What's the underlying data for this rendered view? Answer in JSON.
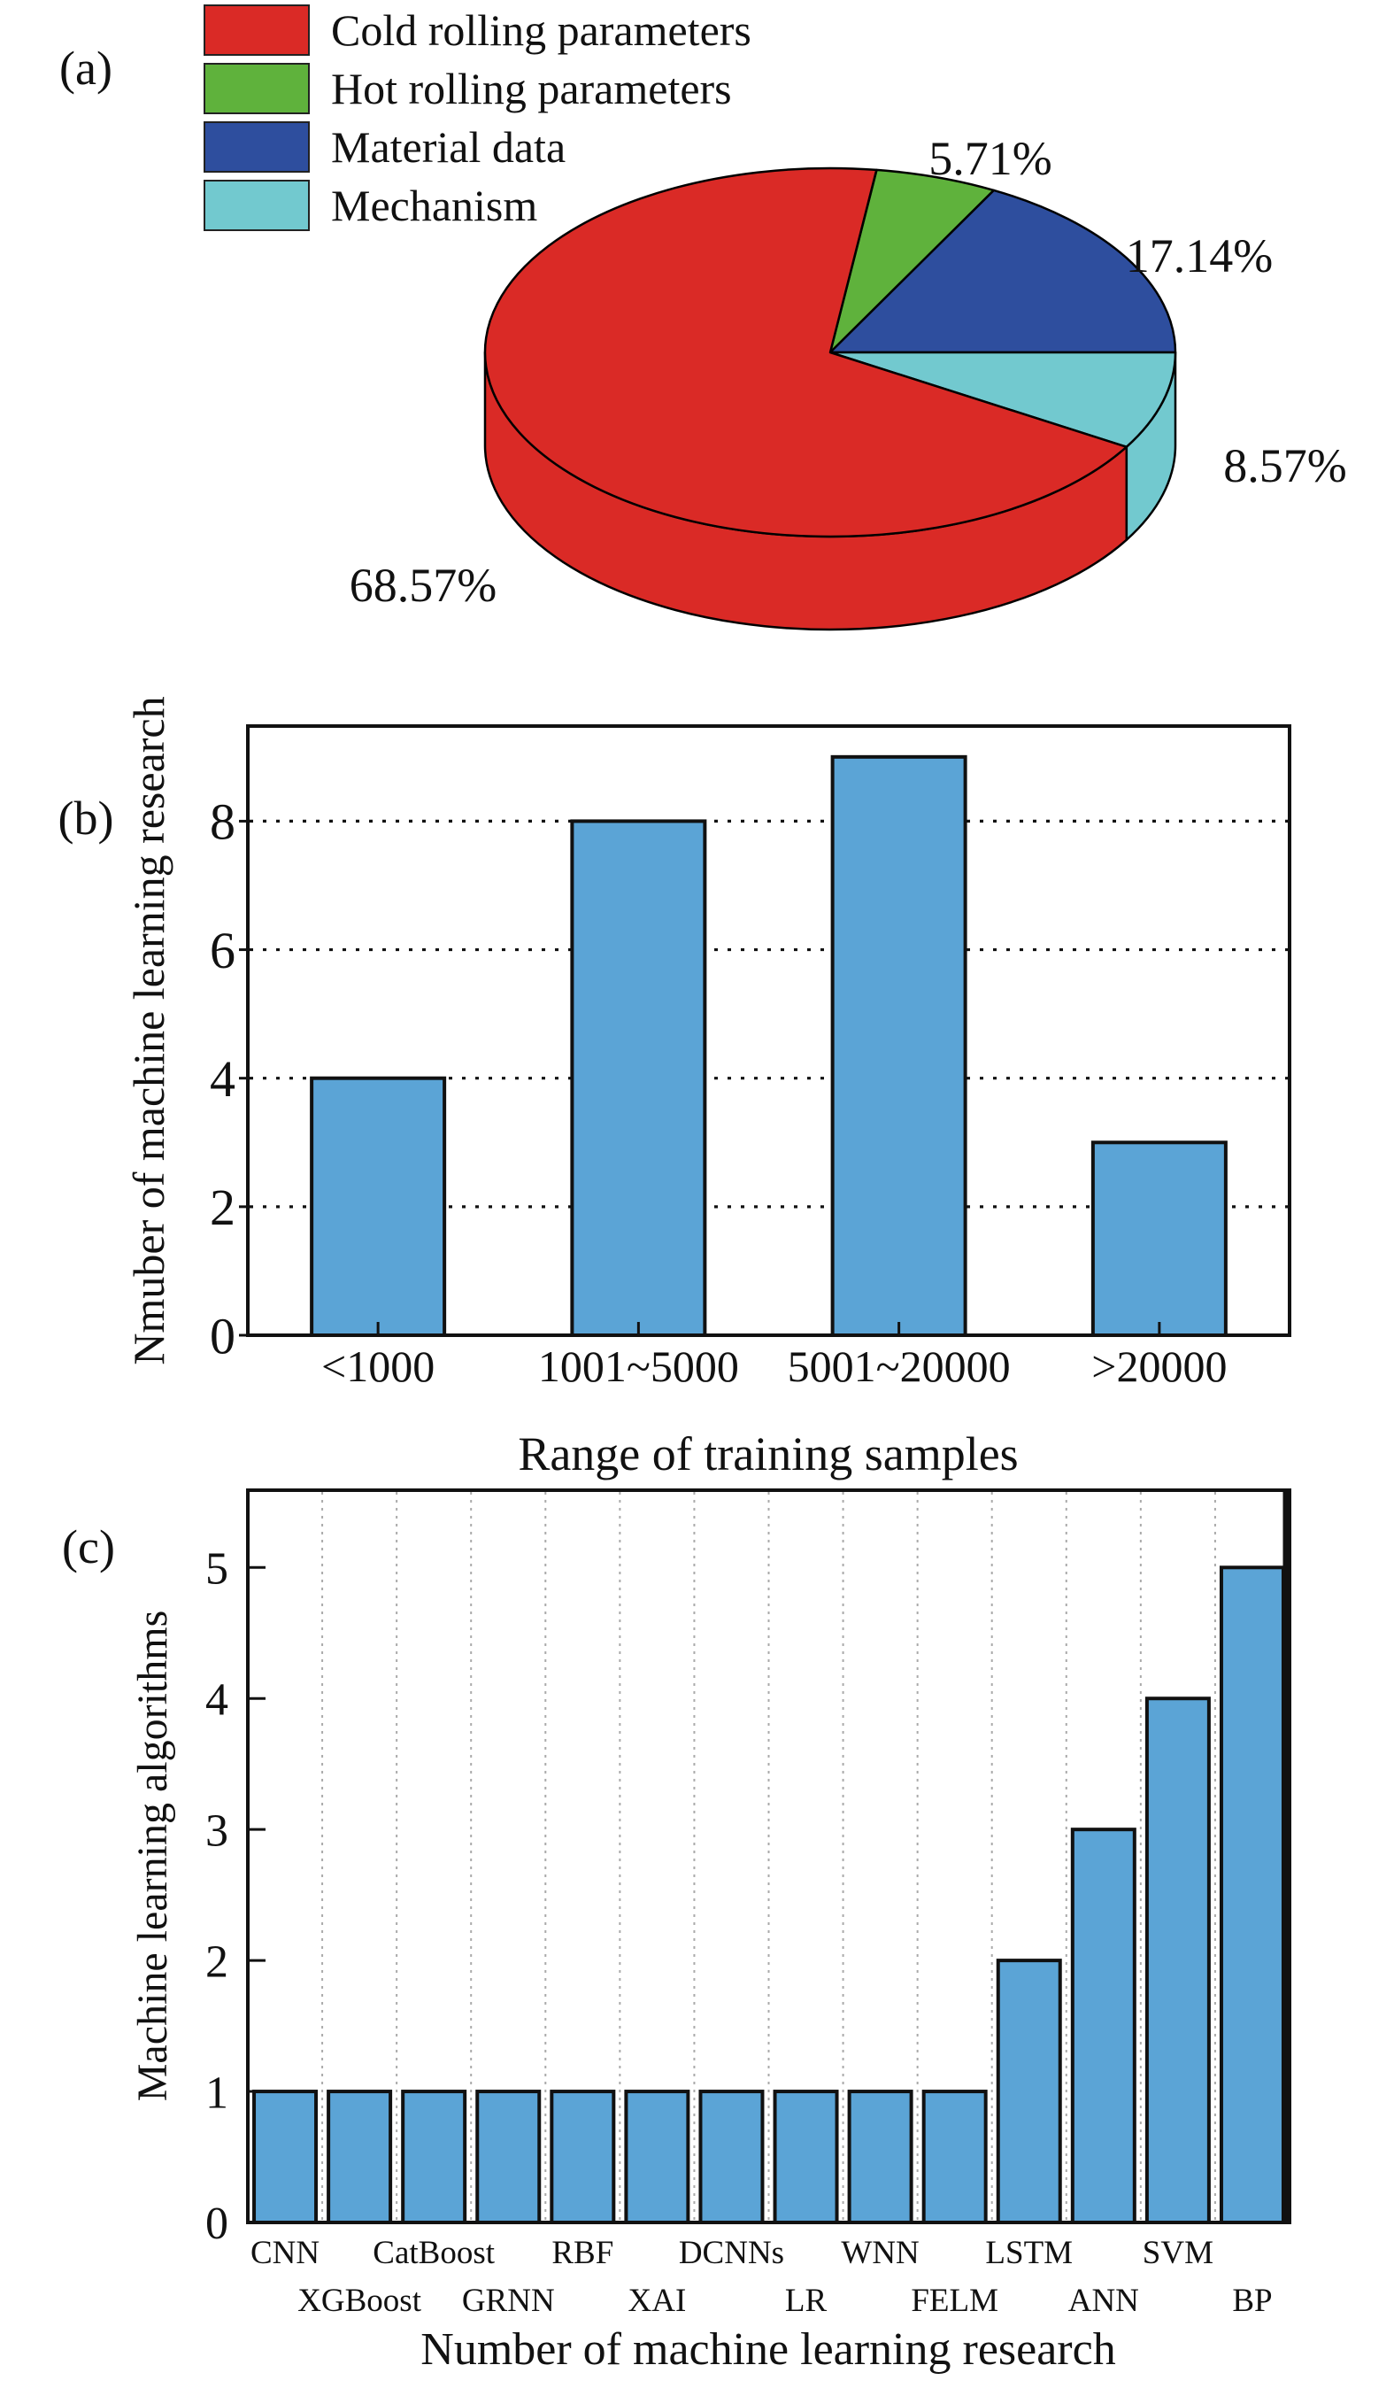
{
  "figure": {
    "background": "#ffffff",
    "text_color": "#111111"
  },
  "panels": {
    "a": {
      "tag": "(a)"
    },
    "b": {
      "tag": "(b)"
    },
    "c": {
      "tag": "(c)"
    }
  },
  "chart_data": [
    {
      "type": "pie",
      "panel": "a",
      "style": "3d",
      "legend_position": "upper-left",
      "labels": [
        "Cold rolling parameters",
        "Hot rolling parameters",
        "Material data",
        "Mechanism"
      ],
      "values_pct": [
        68.57,
        5.71,
        17.14,
        8.57
      ],
      "data_labels": [
        "68.57%",
        "5.71%",
        "17.14%",
        "8.57%"
      ],
      "colors": [
        "#da2a26",
        "#5fb23c",
        "#2e4e9e",
        "#72c9cf"
      ],
      "start_angle_deg_cw_from_top": 7.74,
      "draw_order": [
        1,
        2,
        3,
        0
      ]
    },
    {
      "type": "bar",
      "panel": "b",
      "categories": [
        "<1000",
        "1001~5000",
        "5001~20000",
        ">20000"
      ],
      "values": [
        4,
        8,
        9,
        3
      ],
      "xlabel": "Range of training samples",
      "ylabel": "Nmuber of machine learning research",
      "yticks": [
        0,
        2,
        4,
        6,
        8
      ],
      "ylim": [
        0,
        9.48
      ],
      "bar_color": "#5ba4d6",
      "bar_edge_color": "#111111",
      "grid": "horizontal-dotted",
      "grid_color": "#111111"
    },
    {
      "type": "bar",
      "panel": "c",
      "categories": [
        "CNN",
        "XGBoost",
        "CatBoost",
        "GRNN",
        "RBF",
        "XAI",
        "DCNNs",
        "LR",
        "WNN",
        "FELM",
        "LSTM",
        "ANN",
        "SVM",
        "BP"
      ],
      "values": [
        1,
        1,
        1,
        1,
        1,
        1,
        1,
        1,
        1,
        1,
        2,
        3,
        4,
        5
      ],
      "xlabel": "Number of machine learning research",
      "ylabel": "Machine learning algorithms",
      "yticks": [
        1,
        2,
        3,
        4,
        5
      ],
      "ylim": [
        0,
        5.59
      ],
      "bar_color": "#5ba4d6",
      "bar_edge_color": "#111111",
      "grid": "vertical-dotted",
      "grid_color": "#aaaaaa",
      "xtick_label_rows": 2
    }
  ]
}
